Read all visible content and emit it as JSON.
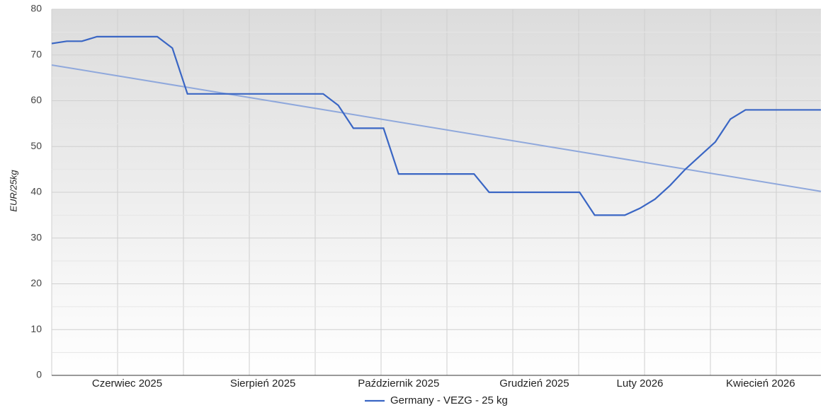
{
  "chart_data": {
    "type": "line",
    "y_label": "EUR/25kg",
    "categories": [
      null,
      null,
      null,
      null,
      null,
      "Czerwiec 2025",
      null,
      null,
      null,
      null,
      null,
      null,
      null,
      null,
      "Sierpień 2025",
      null,
      null,
      null,
      null,
      null,
      null,
      null,
      null,
      "Październik 2025",
      null,
      null,
      null,
      null,
      null,
      null,
      null,
      null,
      "Grudzień 2025",
      null,
      null,
      null,
      null,
      null,
      null,
      "Luty 2026",
      null,
      null,
      null,
      null,
      null,
      null,
      null,
      "Kwiecień 2026",
      null,
      null,
      null,
      null
    ],
    "series": [
      {
        "name": "Germany - VEZG - 25 kg",
        "color": "#3a66c4",
        "values": [
          72.5,
          73,
          73,
          74,
          74,
          74,
          74,
          74,
          71.5,
          61.5,
          61.5,
          61.5,
          61.5,
          61.5,
          61.5,
          61.5,
          61.5,
          61.5,
          61.5,
          59,
          54,
          54,
          54,
          44,
          44,
          44,
          44,
          44,
          44,
          40,
          40,
          40,
          40,
          40,
          40,
          40,
          35,
          35,
          35,
          36.5,
          38.5,
          41.5,
          45,
          48,
          51,
          56,
          58,
          58,
          58,
          58,
          58,
          58
        ]
      }
    ],
    "trendline": {
      "color": "#8fa8dc",
      "start": 67.8,
      "end": 40.2
    },
    "ylim": [
      0,
      80
    ],
    "yticks": [
      0,
      10,
      20,
      30,
      40,
      50,
      60,
      70,
      80
    ],
    "grid": true
  }
}
